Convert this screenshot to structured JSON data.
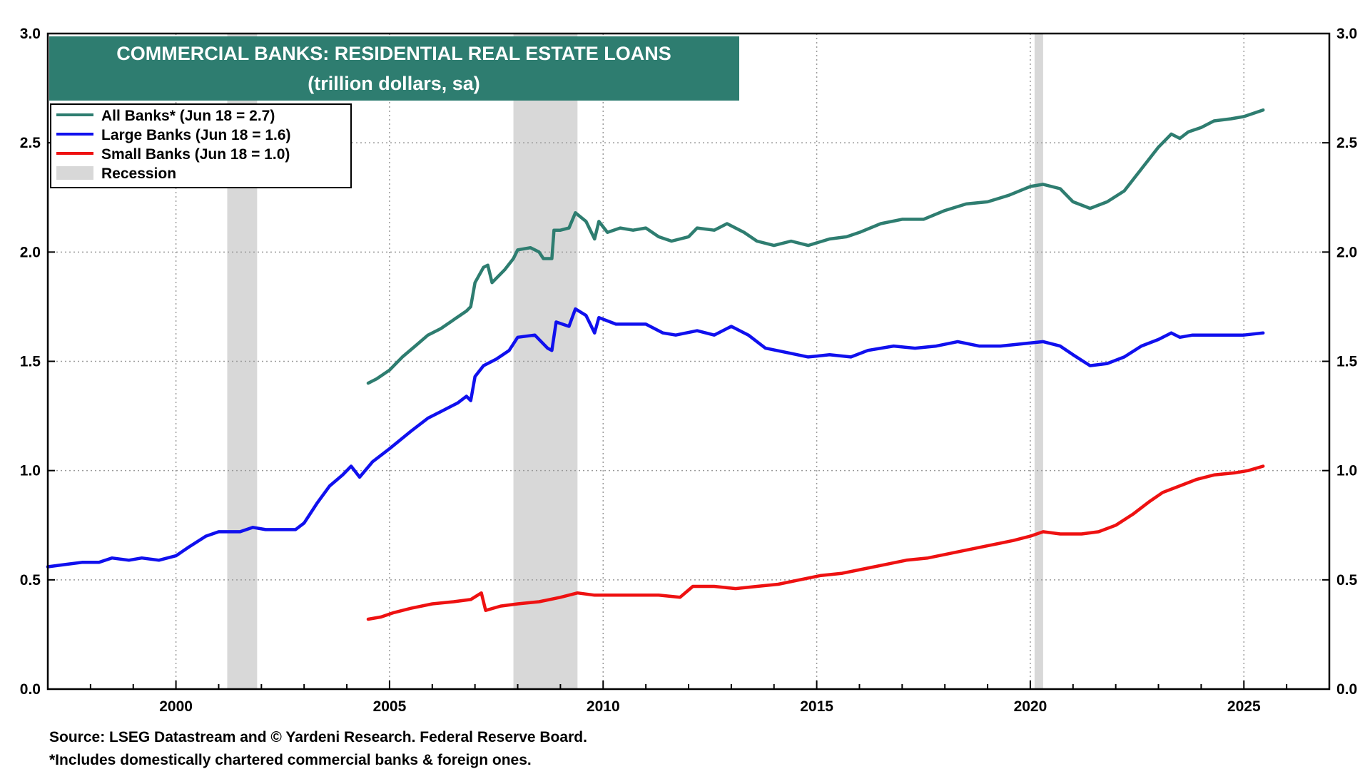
{
  "chart_data": {
    "type": "line",
    "title": "COMMERCIAL BANKS: RESIDENTIAL REAL ESTATE LOANS",
    "subtitle": "(trillion dollars, sa)",
    "ylim": [
      0,
      3
    ],
    "y_ticks": [
      "0.0",
      "0.5",
      "1.0",
      "1.5",
      "2.0",
      "2.5",
      "3.0"
    ],
    "x_ticks": [
      "2000",
      "2005",
      "2010",
      "2015",
      "2020",
      "2025"
    ],
    "xlim": [
      1997.0,
      2027.0
    ],
    "grid": true,
    "legend_position": "top-left",
    "colors": {
      "title_bg": "#2e7d70",
      "recession": "#d8d8d8"
    },
    "recessions": [
      {
        "start": 2001.2,
        "end": 2001.9
      },
      {
        "start": 2007.9,
        "end": 2009.4
      },
      {
        "start": 2020.1,
        "end": 2020.3
      }
    ],
    "legend": [
      {
        "label": "All Banks* (Jun 18 = 2.7)",
        "color": "#2e7d70",
        "kind": "line"
      },
      {
        "label": "Large Banks (Jun 18 = 1.6)",
        "color": "#1010ee",
        "kind": "line"
      },
      {
        "label": "Small Banks (Jun 18 = 1.0)",
        "color": "#ee1111",
        "kind": "line"
      },
      {
        "label": "Recession",
        "color": "#d8d8d8",
        "kind": "box"
      }
    ],
    "series": [
      {
        "name": "All Banks*",
        "color": "#2e7d70",
        "points": [
          [
            2004.5,
            1.4
          ],
          [
            2004.7,
            1.42
          ],
          [
            2005.0,
            1.46
          ],
          [
            2005.3,
            1.52
          ],
          [
            2005.6,
            1.57
          ],
          [
            2005.9,
            1.62
          ],
          [
            2006.2,
            1.65
          ],
          [
            2006.5,
            1.69
          ],
          [
            2006.8,
            1.73
          ],
          [
            2006.9,
            1.75
          ],
          [
            2007.0,
            1.86
          ],
          [
            2007.2,
            1.93
          ],
          [
            2007.3,
            1.94
          ],
          [
            2007.4,
            1.86
          ],
          [
            2007.7,
            1.92
          ],
          [
            2007.9,
            1.97
          ],
          [
            2008.0,
            2.01
          ],
          [
            2008.3,
            2.02
          ],
          [
            2008.5,
            2.0
          ],
          [
            2008.6,
            1.97
          ],
          [
            2008.8,
            1.97
          ],
          [
            2008.85,
            2.1
          ],
          [
            2009.0,
            2.1
          ],
          [
            2009.2,
            2.11
          ],
          [
            2009.35,
            2.18
          ],
          [
            2009.6,
            2.14
          ],
          [
            2009.8,
            2.06
          ],
          [
            2009.9,
            2.14
          ],
          [
            2010.1,
            2.09
          ],
          [
            2010.4,
            2.11
          ],
          [
            2010.7,
            2.1
          ],
          [
            2011.0,
            2.11
          ],
          [
            2011.3,
            2.07
          ],
          [
            2011.6,
            2.05
          ],
          [
            2012.0,
            2.07
          ],
          [
            2012.2,
            2.11
          ],
          [
            2012.6,
            2.1
          ],
          [
            2012.9,
            2.13
          ],
          [
            2013.3,
            2.09
          ],
          [
            2013.6,
            2.05
          ],
          [
            2014.0,
            2.03
          ],
          [
            2014.4,
            2.05
          ],
          [
            2014.8,
            2.03
          ],
          [
            2015.3,
            2.06
          ],
          [
            2015.7,
            2.07
          ],
          [
            2016.0,
            2.09
          ],
          [
            2016.5,
            2.13
          ],
          [
            2017.0,
            2.15
          ],
          [
            2017.5,
            2.15
          ],
          [
            2018.0,
            2.19
          ],
          [
            2018.5,
            2.22
          ],
          [
            2019.0,
            2.23
          ],
          [
            2019.5,
            2.26
          ],
          [
            2020.0,
            2.3
          ],
          [
            2020.3,
            2.31
          ],
          [
            2020.7,
            2.29
          ],
          [
            2021.0,
            2.23
          ],
          [
            2021.4,
            2.2
          ],
          [
            2021.8,
            2.23
          ],
          [
            2022.2,
            2.28
          ],
          [
            2022.6,
            2.38
          ],
          [
            2023.0,
            2.48
          ],
          [
            2023.3,
            2.54
          ],
          [
            2023.5,
            2.52
          ],
          [
            2023.7,
            2.55
          ],
          [
            2024.0,
            2.57
          ],
          [
            2024.3,
            2.6
          ],
          [
            2024.7,
            2.61
          ],
          [
            2025.0,
            2.62
          ],
          [
            2025.45,
            2.65
          ]
        ]
      },
      {
        "name": "Large Banks",
        "color": "#1010ee",
        "points": [
          [
            1997.0,
            0.56
          ],
          [
            1997.4,
            0.57
          ],
          [
            1997.8,
            0.58
          ],
          [
            1998.2,
            0.58
          ],
          [
            1998.5,
            0.6
          ],
          [
            1998.9,
            0.59
          ],
          [
            1999.2,
            0.6
          ],
          [
            1999.6,
            0.59
          ],
          [
            2000.0,
            0.61
          ],
          [
            2000.3,
            0.65
          ],
          [
            2000.7,
            0.7
          ],
          [
            2001.0,
            0.72
          ],
          [
            2001.5,
            0.72
          ],
          [
            2001.8,
            0.74
          ],
          [
            2002.1,
            0.73
          ],
          [
            2002.5,
            0.73
          ],
          [
            2002.8,
            0.73
          ],
          [
            2003.0,
            0.76
          ],
          [
            2003.3,
            0.85
          ],
          [
            2003.6,
            0.93
          ],
          [
            2003.9,
            0.98
          ],
          [
            2004.1,
            1.02
          ],
          [
            2004.3,
            0.97
          ],
          [
            2004.6,
            1.04
          ],
          [
            2005.0,
            1.1
          ],
          [
            2005.5,
            1.18
          ],
          [
            2005.9,
            1.24
          ],
          [
            2006.2,
            1.27
          ],
          [
            2006.6,
            1.31
          ],
          [
            2006.8,
            1.34
          ],
          [
            2006.9,
            1.32
          ],
          [
            2007.0,
            1.43
          ],
          [
            2007.2,
            1.48
          ],
          [
            2007.5,
            1.51
          ],
          [
            2007.8,
            1.55
          ],
          [
            2008.0,
            1.61
          ],
          [
            2008.4,
            1.62
          ],
          [
            2008.7,
            1.56
          ],
          [
            2008.8,
            1.55
          ],
          [
            2008.9,
            1.68
          ],
          [
            2009.2,
            1.66
          ],
          [
            2009.35,
            1.74
          ],
          [
            2009.6,
            1.71
          ],
          [
            2009.8,
            1.63
          ],
          [
            2009.9,
            1.7
          ],
          [
            2010.3,
            1.67
          ],
          [
            2010.7,
            1.67
          ],
          [
            2011.0,
            1.67
          ],
          [
            2011.4,
            1.63
          ],
          [
            2011.7,
            1.62
          ],
          [
            2012.2,
            1.64
          ],
          [
            2012.6,
            1.62
          ],
          [
            2013.0,
            1.66
          ],
          [
            2013.4,
            1.62
          ],
          [
            2013.8,
            1.56
          ],
          [
            2014.3,
            1.54
          ],
          [
            2014.8,
            1.52
          ],
          [
            2015.3,
            1.53
          ],
          [
            2015.8,
            1.52
          ],
          [
            2016.2,
            1.55
          ],
          [
            2016.8,
            1.57
          ],
          [
            2017.3,
            1.56
          ],
          [
            2017.8,
            1.57
          ],
          [
            2018.3,
            1.59
          ],
          [
            2018.8,
            1.57
          ],
          [
            2019.3,
            1.57
          ],
          [
            2019.8,
            1.58
          ],
          [
            2020.3,
            1.59
          ],
          [
            2020.7,
            1.57
          ],
          [
            2021.0,
            1.53
          ],
          [
            2021.4,
            1.48
          ],
          [
            2021.8,
            1.49
          ],
          [
            2022.2,
            1.52
          ],
          [
            2022.6,
            1.57
          ],
          [
            2023.0,
            1.6
          ],
          [
            2023.3,
            1.63
          ],
          [
            2023.5,
            1.61
          ],
          [
            2023.8,
            1.62
          ],
          [
            2024.3,
            1.62
          ],
          [
            2024.8,
            1.62
          ],
          [
            2025.0,
            1.62
          ],
          [
            2025.45,
            1.63
          ]
        ]
      },
      {
        "name": "Small Banks",
        "color": "#ee1111",
        "points": [
          [
            2004.5,
            0.32
          ],
          [
            2004.8,
            0.33
          ],
          [
            2005.1,
            0.35
          ],
          [
            2005.5,
            0.37
          ],
          [
            2006.0,
            0.39
          ],
          [
            2006.5,
            0.4
          ],
          [
            2006.9,
            0.41
          ],
          [
            2007.15,
            0.44
          ],
          [
            2007.25,
            0.36
          ],
          [
            2007.6,
            0.38
          ],
          [
            2008.0,
            0.39
          ],
          [
            2008.5,
            0.4
          ],
          [
            2009.0,
            0.42
          ],
          [
            2009.4,
            0.44
          ],
          [
            2009.8,
            0.43
          ],
          [
            2010.3,
            0.43
          ],
          [
            2010.8,
            0.43
          ],
          [
            2011.3,
            0.43
          ],
          [
            2011.8,
            0.42
          ],
          [
            2012.1,
            0.47
          ],
          [
            2012.6,
            0.47
          ],
          [
            2013.1,
            0.46
          ],
          [
            2013.6,
            0.47
          ],
          [
            2014.1,
            0.48
          ],
          [
            2014.6,
            0.5
          ],
          [
            2015.1,
            0.52
          ],
          [
            2015.6,
            0.53
          ],
          [
            2016.1,
            0.55
          ],
          [
            2016.6,
            0.57
          ],
          [
            2017.1,
            0.59
          ],
          [
            2017.6,
            0.6
          ],
          [
            2018.1,
            0.62
          ],
          [
            2018.6,
            0.64
          ],
          [
            2019.1,
            0.66
          ],
          [
            2019.6,
            0.68
          ],
          [
            2020.0,
            0.7
          ],
          [
            2020.3,
            0.72
          ],
          [
            2020.7,
            0.71
          ],
          [
            2021.2,
            0.71
          ],
          [
            2021.6,
            0.72
          ],
          [
            2022.0,
            0.75
          ],
          [
            2022.4,
            0.8
          ],
          [
            2022.8,
            0.86
          ],
          [
            2023.1,
            0.9
          ],
          [
            2023.5,
            0.93
          ],
          [
            2023.9,
            0.96
          ],
          [
            2024.3,
            0.98
          ],
          [
            2024.8,
            0.99
          ],
          [
            2025.1,
            1.0
          ],
          [
            2025.45,
            1.02
          ]
        ]
      }
    ]
  },
  "footer": {
    "source": "Source: LSEG Datastream and © Yardeni Research. Federal Reserve Board.",
    "note": "*Includes domestically chartered commercial banks & foreign ones."
  }
}
